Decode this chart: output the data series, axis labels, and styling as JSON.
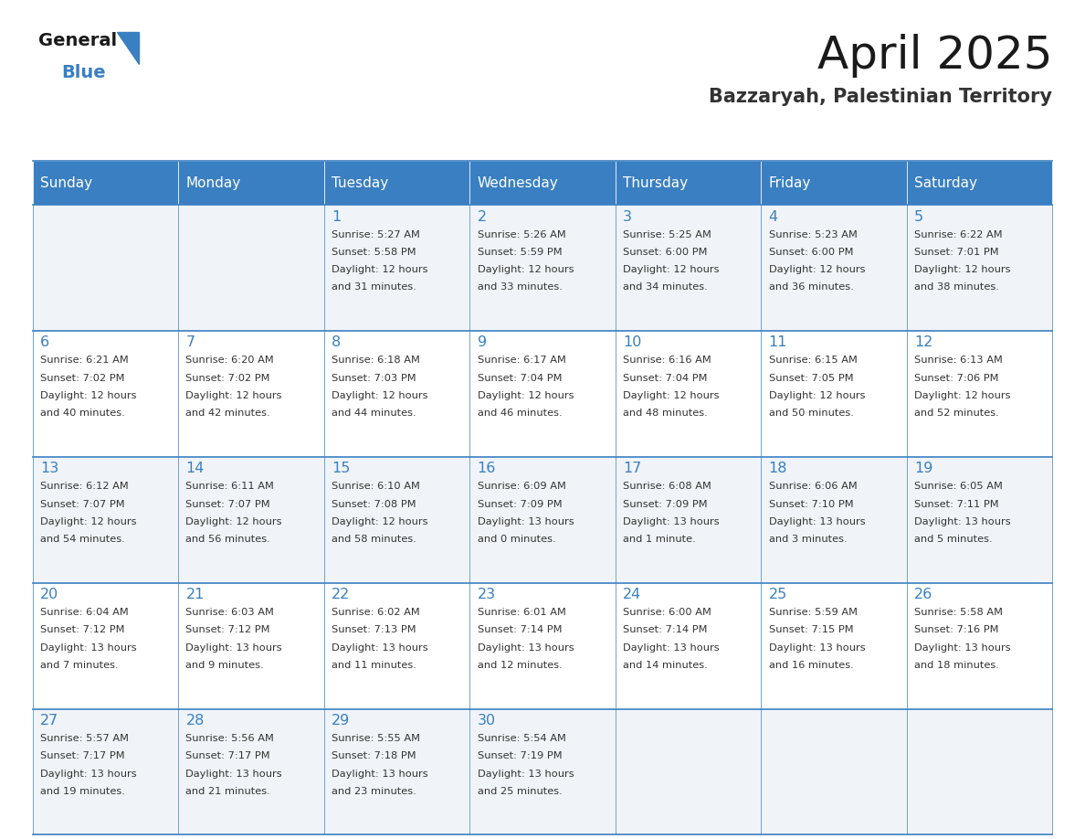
{
  "title": "April 2025",
  "subtitle": "Bazzaryah, Palestinian Territory",
  "days_of_week": [
    "Sunday",
    "Monday",
    "Tuesday",
    "Wednesday",
    "Thursday",
    "Friday",
    "Saturday"
  ],
  "header_bg": "#3a7fc1",
  "header_text": "#ffffff",
  "cell_bg_light": "#f0f4f8",
  "cell_bg_white": "#ffffff",
  "border_color": "#3a7fc1",
  "title_color": "#1a1a1a",
  "subtitle_color": "#333333",
  "day_num_color": "#3a7fc1",
  "cell_text_color": "#333333",
  "calendar_data": [
    [
      null,
      null,
      {
        "day": 1,
        "sunrise": "5:27 AM",
        "sunset": "5:58 PM",
        "daylight": "12 hours and 31 minutes"
      },
      {
        "day": 2,
        "sunrise": "5:26 AM",
        "sunset": "5:59 PM",
        "daylight": "12 hours and 33 minutes"
      },
      {
        "day": 3,
        "sunrise": "5:25 AM",
        "sunset": "6:00 PM",
        "daylight": "12 hours and 34 minutes"
      },
      {
        "day": 4,
        "sunrise": "5:23 AM",
        "sunset": "6:00 PM",
        "daylight": "12 hours and 36 minutes"
      },
      {
        "day": 5,
        "sunrise": "6:22 AM",
        "sunset": "7:01 PM",
        "daylight": "12 hours and 38 minutes"
      }
    ],
    [
      {
        "day": 6,
        "sunrise": "6:21 AM",
        "sunset": "7:02 PM",
        "daylight": "12 hours and 40 minutes"
      },
      {
        "day": 7,
        "sunrise": "6:20 AM",
        "sunset": "7:02 PM",
        "daylight": "12 hours and 42 minutes"
      },
      {
        "day": 8,
        "sunrise": "6:18 AM",
        "sunset": "7:03 PM",
        "daylight": "12 hours and 44 minutes"
      },
      {
        "day": 9,
        "sunrise": "6:17 AM",
        "sunset": "7:04 PM",
        "daylight": "12 hours and 46 minutes"
      },
      {
        "day": 10,
        "sunrise": "6:16 AM",
        "sunset": "7:04 PM",
        "daylight": "12 hours and 48 minutes"
      },
      {
        "day": 11,
        "sunrise": "6:15 AM",
        "sunset": "7:05 PM",
        "daylight": "12 hours and 50 minutes"
      },
      {
        "day": 12,
        "sunrise": "6:13 AM",
        "sunset": "7:06 PM",
        "daylight": "12 hours and 52 minutes"
      }
    ],
    [
      {
        "day": 13,
        "sunrise": "6:12 AM",
        "sunset": "7:07 PM",
        "daylight": "12 hours and 54 minutes"
      },
      {
        "day": 14,
        "sunrise": "6:11 AM",
        "sunset": "7:07 PM",
        "daylight": "12 hours and 56 minutes"
      },
      {
        "day": 15,
        "sunrise": "6:10 AM",
        "sunset": "7:08 PM",
        "daylight": "12 hours and 58 minutes"
      },
      {
        "day": 16,
        "sunrise": "6:09 AM",
        "sunset": "7:09 PM",
        "daylight": "13 hours and 0 minutes"
      },
      {
        "day": 17,
        "sunrise": "6:08 AM",
        "sunset": "7:09 PM",
        "daylight": "13 hours and 1 minute"
      },
      {
        "day": 18,
        "sunrise": "6:06 AM",
        "sunset": "7:10 PM",
        "daylight": "13 hours and 3 minutes"
      },
      {
        "day": 19,
        "sunrise": "6:05 AM",
        "sunset": "7:11 PM",
        "daylight": "13 hours and 5 minutes"
      }
    ],
    [
      {
        "day": 20,
        "sunrise": "6:04 AM",
        "sunset": "7:12 PM",
        "daylight": "13 hours and 7 minutes"
      },
      {
        "day": 21,
        "sunrise": "6:03 AM",
        "sunset": "7:12 PM",
        "daylight": "13 hours and 9 minutes"
      },
      {
        "day": 22,
        "sunrise": "6:02 AM",
        "sunset": "7:13 PM",
        "daylight": "13 hours and 11 minutes"
      },
      {
        "day": 23,
        "sunrise": "6:01 AM",
        "sunset": "7:14 PM",
        "daylight": "13 hours and 12 minutes"
      },
      {
        "day": 24,
        "sunrise": "6:00 AM",
        "sunset": "7:14 PM",
        "daylight": "13 hours and 14 minutes"
      },
      {
        "day": 25,
        "sunrise": "5:59 AM",
        "sunset": "7:15 PM",
        "daylight": "13 hours and 16 minutes"
      },
      {
        "day": 26,
        "sunrise": "5:58 AM",
        "sunset": "7:16 PM",
        "daylight": "13 hours and 18 minutes"
      }
    ],
    [
      {
        "day": 27,
        "sunrise": "5:57 AM",
        "sunset": "7:17 PM",
        "daylight": "13 hours and 19 minutes"
      },
      {
        "day": 28,
        "sunrise": "5:56 AM",
        "sunset": "7:17 PM",
        "daylight": "13 hours and 21 minutes"
      },
      {
        "day": 29,
        "sunrise": "5:55 AM",
        "sunset": "7:18 PM",
        "daylight": "13 hours and 23 minutes"
      },
      {
        "day": 30,
        "sunrise": "5:54 AM",
        "sunset": "7:19 PM",
        "daylight": "13 hours and 25 minutes"
      },
      null,
      null,
      null
    ]
  ]
}
